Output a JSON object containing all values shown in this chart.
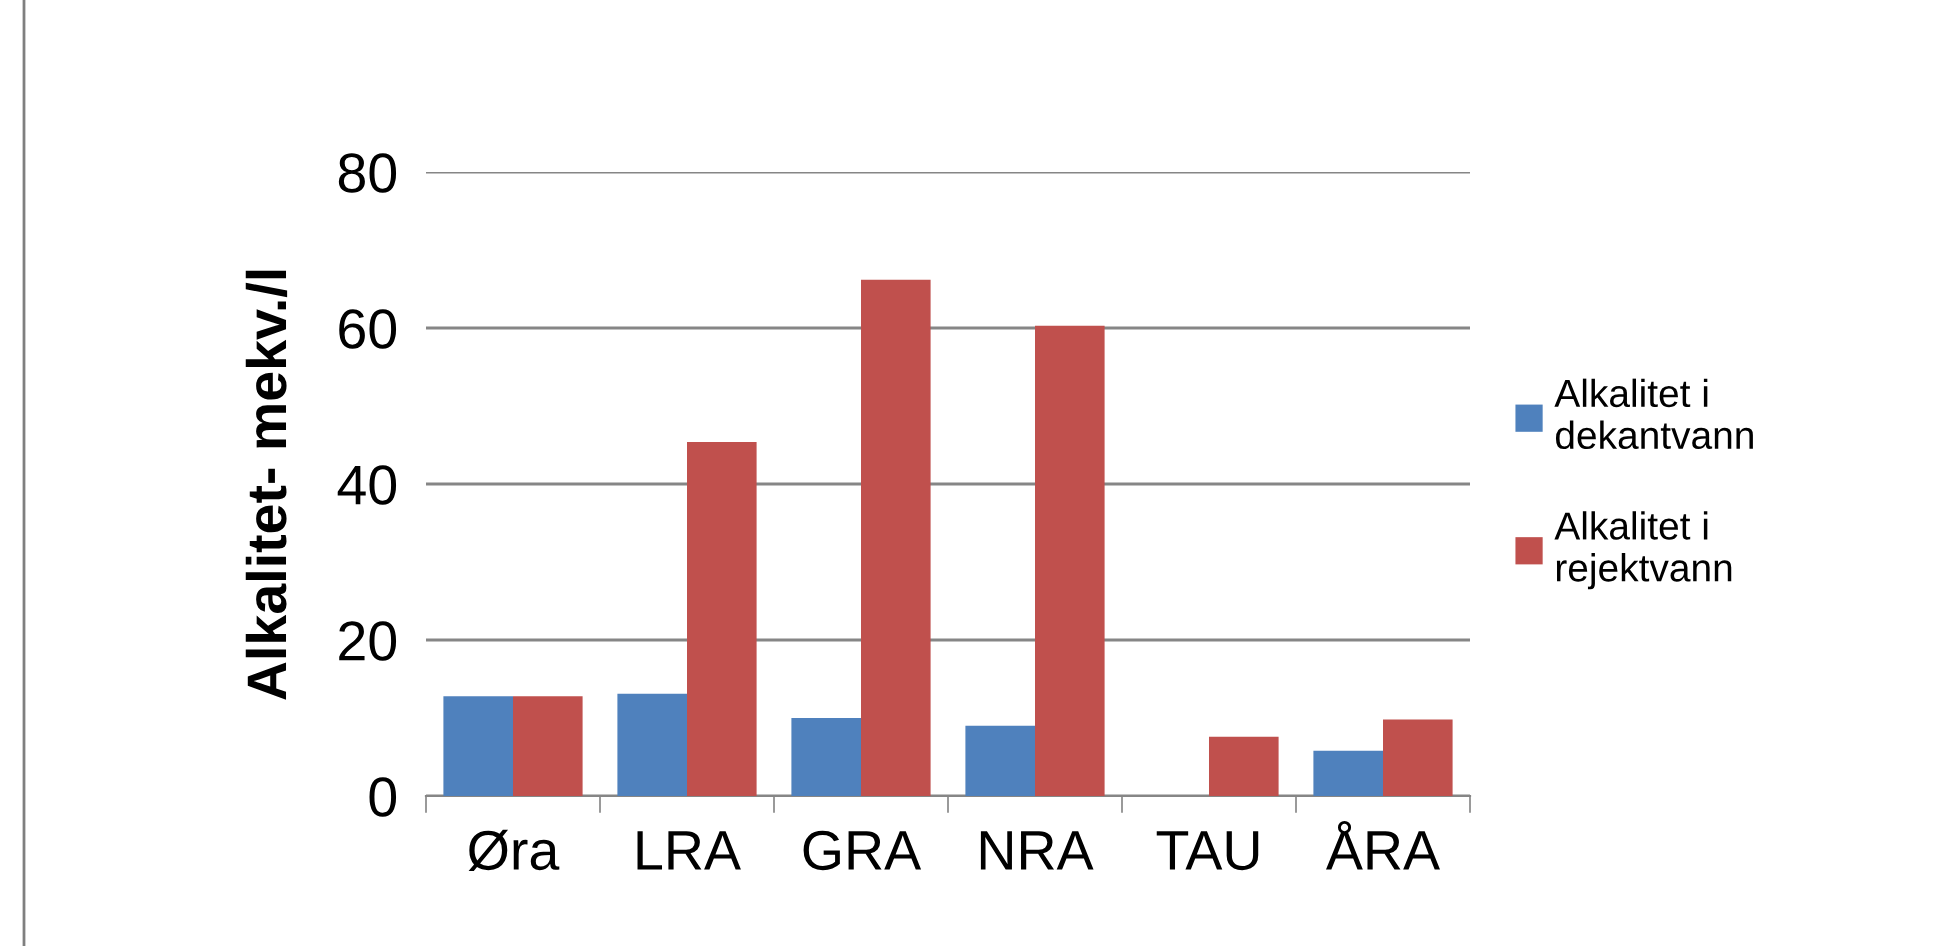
{
  "chart_data": {
    "type": "bar",
    "ylabel": "Alkalitet- mekv./l",
    "categories": [
      "Øra",
      "LRA",
      "GRA",
      "NRA",
      "TAU",
      "ÅRA"
    ],
    "series": [
      {
        "name": "Alkalitet i dekantvann",
        "color": "#4f81bd",
        "values": [
          12.8,
          13.1,
          10,
          9,
          null,
          5.8
        ]
      },
      {
        "name": "Alkalitet i rejektvann",
        "color": "#c0504d",
        "values": [
          12.8,
          45.4,
          66.2,
          60.3,
          7.6,
          9.8
        ]
      }
    ],
    "ylim": [
      0,
      80
    ],
    "yticks": [
      0,
      20,
      40,
      60,
      80
    ],
    "grid": "y",
    "legend": "right"
  }
}
